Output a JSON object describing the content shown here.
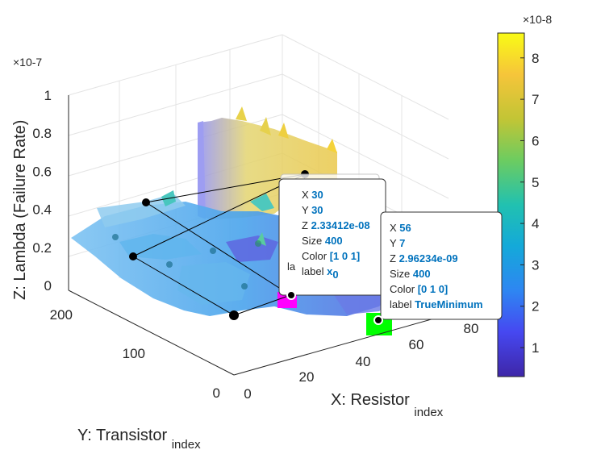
{
  "figure": {
    "z_exponent": "×10-7",
    "colorbar_exponent": "×10-8"
  },
  "chart_data": {
    "type": "surface",
    "xlabel_main": "X: Resistor",
    "xlabel_sub": "index",
    "ylabel_main": "Y: Transistor",
    "ylabel_sub": "index",
    "zlabel": "Z: Lambda (Failure Rate)",
    "x_ticks": [
      "0",
      "20",
      "40",
      "60",
      "80"
    ],
    "y_ticks": [
      "0",
      "100",
      "200"
    ],
    "z_ticks": [
      "0",
      "0.2",
      "0.4",
      "0.6",
      "0.8",
      "1"
    ],
    "zlim": [
      0,
      1
    ],
    "colormap": "parula",
    "colorbar": {
      "ticks": [
        "1",
        "2",
        "3",
        "4",
        "5",
        "6",
        "7",
        "8"
      ],
      "range": [
        0.3,
        8.6
      ]
    },
    "scatter_points": [
      {
        "x": 30,
        "y": 30,
        "z": 2.33412e-08,
        "color": "#ff00ff",
        "name": "x0"
      },
      {
        "x": 56,
        "y": 7,
        "z": 2.96234e-09,
        "color": "#00ff00",
        "name": "TrueMinimum"
      }
    ],
    "datatips": [
      {
        "rows": [
          {
            "key": "X",
            "value": "30"
          },
          {
            "key": "Y",
            "value": "30"
          },
          {
            "key": "Z",
            "value": "2.33412e-08"
          },
          {
            "key": "Size",
            "value": "400"
          },
          {
            "key": "Color",
            "value": "[1 0 1]"
          }
        ],
        "label_key": "label",
        "label_value": "x",
        "label_sub": "0"
      },
      {
        "rows": [
          {
            "key": "X",
            "value": "56"
          },
          {
            "key": "Y",
            "value": "7"
          },
          {
            "key": "Z",
            "value": "2.96234e-09"
          },
          {
            "key": "Size",
            "value": "400"
          },
          {
            "key": "Color",
            "value": "[0 1 0]"
          }
        ],
        "label_key": "label",
        "label_value": "TrueMinimum",
        "label_sub": ""
      }
    ],
    "hidden_tip_fragment": "la"
  },
  "colors": {
    "magenta_marker": "#ff00ff",
    "green_marker": "#00ff00",
    "value_text": "#0072bd"
  }
}
